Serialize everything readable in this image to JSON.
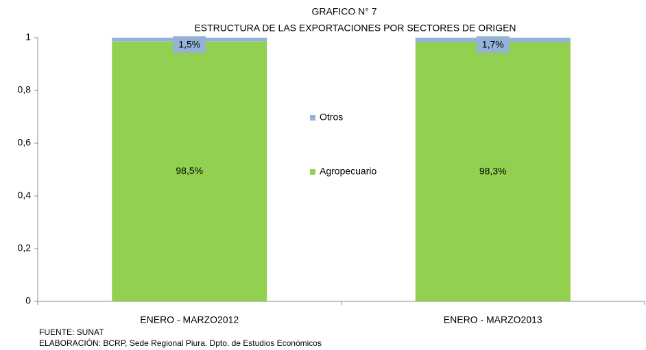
{
  "chart_data": {
    "type": "stacked_bar",
    "title": "GRAFICO N° 7",
    "subtitle": "ESTRUCTURA DE LAS EXPORTACIONES POR SECTORES DE ORIGEN",
    "categories": [
      "ENERO - MARZO2012",
      "ENERO - MARZO2013"
    ],
    "series": [
      {
        "name": "Agropecuario",
        "color": "#92d050",
        "values": [
          0.985,
          0.983
        ],
        "value_labels": [
          "98,5%",
          "98,3%"
        ]
      },
      {
        "name": "Otros",
        "color": "#95b3d7",
        "values": [
          0.015,
          0.017
        ],
        "value_labels": [
          "1,5%",
          "1,7%"
        ]
      }
    ],
    "ylim": [
      0,
      1
    ],
    "yticks": [
      0,
      {
        "value": 0.2,
        "label": "0,2"
      },
      {
        "value": 0.4,
        "label": "0,4"
      },
      {
        "value": 0.6,
        "label": "0,6"
      },
      {
        "value": 0.8,
        "label": "0,8"
      },
      1
    ],
    "grid": false,
    "legend": "center",
    "notes": [
      "FUENTE: SUNAT",
      "ELABORACIÓN: BCRP, Sede Regional Piura. Dpto. de Estudios Económicos"
    ]
  }
}
